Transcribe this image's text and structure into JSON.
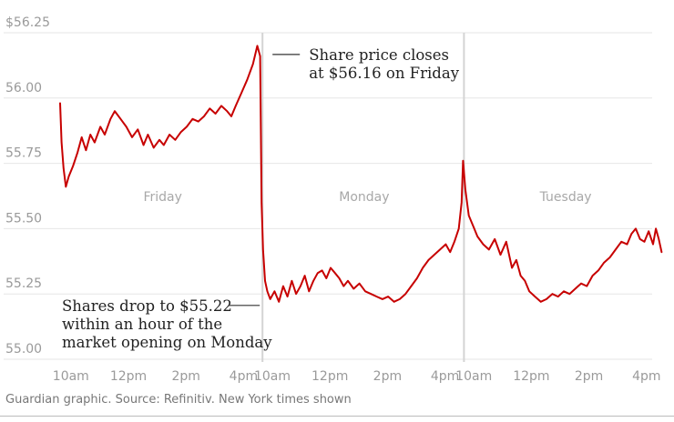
{
  "colors": {
    "series": "#c70000",
    "gridline": "#e6e6e6",
    "divider": "#d4d4d4",
    "tick_text": "#9a9a9a",
    "annotation_text": "#222222"
  },
  "source": "Guardian graphic. Source: Refinitiv. New York times shown",
  "chart_data": {
    "type": "line",
    "title": "",
    "xlabel": "",
    "ylabel": "",
    "ylim": [
      55.0,
      56.25
    ],
    "xlim": [
      0,
      20
    ],
    "yticks": [
      {
        "value": 56.25,
        "label": "$56.25"
      },
      {
        "value": 56.0,
        "label": "56.00"
      },
      {
        "value": 55.75,
        "label": "55.75"
      },
      {
        "value": 55.5,
        "label": "55.50"
      },
      {
        "value": 55.25,
        "label": "55.25"
      },
      {
        "value": 55.0,
        "label": "55.00"
      }
    ],
    "xticks": [
      {
        "value": 0.5,
        "label": "10am"
      },
      {
        "value": 2.5,
        "label": "12pm"
      },
      {
        "value": 4.5,
        "label": "2pm"
      },
      {
        "value": 6.5,
        "label": "4pm"
      },
      {
        "value": 7.5,
        "label": "10am"
      },
      {
        "value": 9.5,
        "label": "12pm"
      },
      {
        "value": 11.5,
        "label": "2pm"
      },
      {
        "value": 13.5,
        "label": "4pm"
      },
      {
        "value": 14.5,
        "label": "10am"
      },
      {
        "value": 16.5,
        "label": "12pm"
      },
      {
        "value": 18.5,
        "label": "2pm"
      },
      {
        "value": 20.5,
        "label": "4pm"
      }
    ],
    "day_dividers": [
      7.0,
      14.0
    ],
    "days": [
      {
        "label": "Friday",
        "center": 3.25
      },
      {
        "label": "Monday",
        "center": 10.25
      },
      {
        "label": "Tuesday",
        "center": 17.25
      }
    ],
    "annotations": [
      {
        "lines": [
          "Share price closes",
          "at $56.16 on Friday"
        ],
        "x": 7.0,
        "y": 56.16,
        "side": "right"
      },
      {
        "lines": [
          "Shares drop to $55.22",
          "within an hour of the",
          "market opening on Monday"
        ],
        "x": 7.0,
        "y": 55.22,
        "side": "left"
      }
    ],
    "series": [
      {
        "name": "Share price",
        "color": "#c70000",
        "points": [
          [
            0.0,
            55.98
          ],
          [
            0.05,
            55.83
          ],
          [
            0.12,
            55.73
          ],
          [
            0.2,
            55.66
          ],
          [
            0.3,
            55.7
          ],
          [
            0.45,
            55.74
          ],
          [
            0.6,
            55.79
          ],
          [
            0.75,
            55.85
          ],
          [
            0.9,
            55.8
          ],
          [
            1.05,
            55.86
          ],
          [
            1.2,
            55.83
          ],
          [
            1.4,
            55.89
          ],
          [
            1.55,
            55.86
          ],
          [
            1.75,
            55.92
          ],
          [
            1.9,
            55.95
          ],
          [
            2.1,
            55.92
          ],
          [
            2.3,
            55.89
          ],
          [
            2.5,
            55.85
          ],
          [
            2.7,
            55.88
          ],
          [
            2.9,
            55.82
          ],
          [
            3.05,
            55.86
          ],
          [
            3.25,
            55.81
          ],
          [
            3.45,
            55.84
          ],
          [
            3.6,
            55.82
          ],
          [
            3.8,
            55.86
          ],
          [
            4.0,
            55.84
          ],
          [
            4.2,
            55.87
          ],
          [
            4.4,
            55.89
          ],
          [
            4.6,
            55.92
          ],
          [
            4.8,
            55.91
          ],
          [
            5.0,
            55.93
          ],
          [
            5.2,
            55.96
          ],
          [
            5.4,
            55.94
          ],
          [
            5.6,
            55.97
          ],
          [
            5.8,
            55.95
          ],
          [
            5.95,
            55.93
          ],
          [
            6.1,
            55.97
          ],
          [
            6.3,
            56.02
          ],
          [
            6.5,
            56.07
          ],
          [
            6.7,
            56.13
          ],
          [
            6.85,
            56.2
          ],
          [
            6.95,
            56.16
          ],
          [
            7.0,
            55.6
          ],
          [
            7.05,
            55.42
          ],
          [
            7.12,
            55.3
          ],
          [
            7.2,
            55.26
          ],
          [
            7.3,
            55.23
          ],
          [
            7.45,
            55.26
          ],
          [
            7.6,
            55.22
          ],
          [
            7.75,
            55.28
          ],
          [
            7.9,
            55.24
          ],
          [
            8.05,
            55.3
          ],
          [
            8.2,
            55.25
          ],
          [
            8.35,
            55.28
          ],
          [
            8.5,
            55.32
          ],
          [
            8.65,
            55.26
          ],
          [
            8.8,
            55.3
          ],
          [
            8.95,
            55.33
          ],
          [
            9.1,
            55.34
          ],
          [
            9.25,
            55.31
          ],
          [
            9.4,
            55.35
          ],
          [
            9.55,
            55.33
          ],
          [
            9.7,
            55.31
          ],
          [
            9.85,
            55.28
          ],
          [
            10.0,
            55.3
          ],
          [
            10.2,
            55.27
          ],
          [
            10.4,
            55.29
          ],
          [
            10.6,
            55.26
          ],
          [
            10.8,
            55.25
          ],
          [
            11.0,
            55.24
          ],
          [
            11.2,
            55.23
          ],
          [
            11.4,
            55.24
          ],
          [
            11.6,
            55.22
          ],
          [
            11.8,
            55.23
          ],
          [
            12.0,
            55.25
          ],
          [
            12.2,
            55.28
          ],
          [
            12.4,
            55.31
          ],
          [
            12.6,
            55.35
          ],
          [
            12.8,
            55.38
          ],
          [
            13.0,
            55.4
          ],
          [
            13.2,
            55.42
          ],
          [
            13.4,
            55.44
          ],
          [
            13.55,
            55.41
          ],
          [
            13.7,
            55.45
          ],
          [
            13.85,
            55.5
          ],
          [
            13.95,
            55.6
          ],
          [
            14.0,
            55.76
          ],
          [
            14.08,
            55.65
          ],
          [
            14.2,
            55.55
          ],
          [
            14.35,
            55.51
          ],
          [
            14.5,
            55.47
          ],
          [
            14.7,
            55.44
          ],
          [
            14.9,
            55.42
          ],
          [
            15.1,
            55.46
          ],
          [
            15.3,
            55.4
          ],
          [
            15.5,
            55.45
          ],
          [
            15.7,
            55.35
          ],
          [
            15.85,
            55.38
          ],
          [
            16.0,
            55.32
          ],
          [
            16.15,
            55.3
          ],
          [
            16.3,
            55.26
          ],
          [
            16.5,
            55.24
          ],
          [
            16.7,
            55.22
          ],
          [
            16.9,
            55.23
          ],
          [
            17.1,
            55.25
          ],
          [
            17.3,
            55.24
          ],
          [
            17.5,
            55.26
          ],
          [
            17.7,
            55.25
          ],
          [
            17.9,
            55.27
          ],
          [
            18.1,
            55.29
          ],
          [
            18.3,
            55.28
          ],
          [
            18.5,
            55.32
          ],
          [
            18.7,
            55.34
          ],
          [
            18.9,
            55.37
          ],
          [
            19.1,
            55.39
          ],
          [
            19.3,
            55.42
          ],
          [
            19.5,
            55.45
          ],
          [
            19.7,
            55.44
          ],
          [
            19.85,
            55.48
          ],
          [
            20.0,
            55.5
          ],
          [
            20.15,
            55.46
          ],
          [
            20.3,
            55.45
          ],
          [
            20.45,
            55.49
          ],
          [
            20.6,
            55.44
          ],
          [
            20.7,
            55.5
          ],
          [
            20.8,
            55.46
          ],
          [
            20.9,
            55.41
          ]
        ]
      }
    ]
  }
}
